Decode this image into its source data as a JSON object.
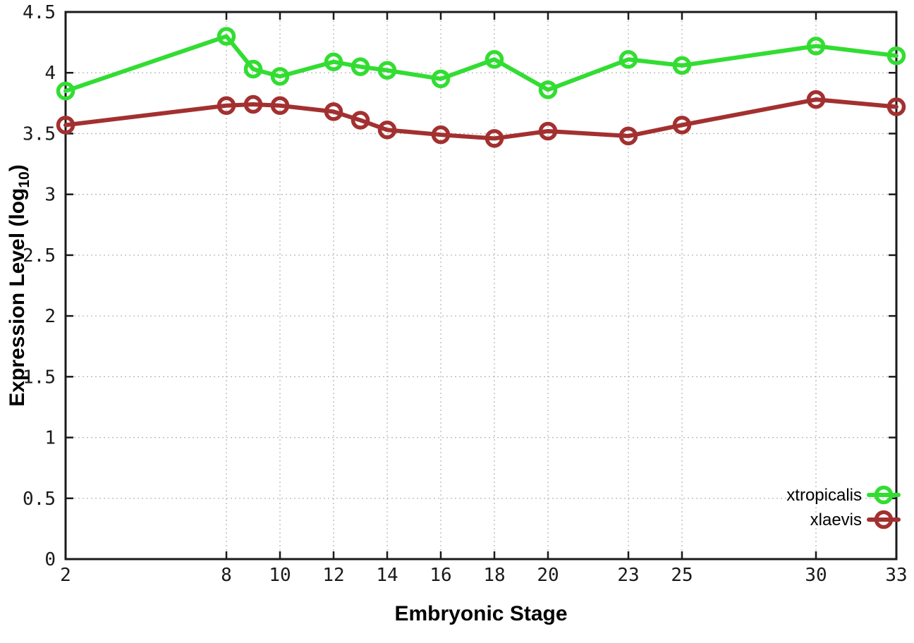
{
  "chart_data": {
    "type": "line",
    "title": "",
    "xlabel": "Embryonic Stage",
    "ylabel": "Expression Level (log10)",
    "ylabel_parts": {
      "main": "Expression Level (log",
      "sub": "10",
      "end": ")"
    },
    "x": [
      2,
      8,
      9,
      10,
      12,
      13,
      14,
      16,
      18,
      20,
      23,
      25,
      30,
      33
    ],
    "series": [
      {
        "name": "xtropicalis",
        "color": "#32dd32",
        "values": [
          3.85,
          4.3,
          4.03,
          3.97,
          4.09,
          4.05,
          4.02,
          3.95,
          4.11,
          3.86,
          4.11,
          4.06,
          4.22,
          4.14
        ]
      },
      {
        "name": "xlaevis",
        "color": "#a33030",
        "values": [
          3.57,
          3.73,
          3.74,
          3.73,
          3.68,
          3.61,
          3.53,
          3.49,
          3.46,
          3.52,
          3.48,
          3.57,
          3.78,
          3.72
        ]
      }
    ],
    "xticks": [
      2,
      8,
      10,
      12,
      14,
      16,
      18,
      20,
      23,
      25,
      30,
      33
    ],
    "yticks": [
      0,
      0.5,
      1,
      1.5,
      2,
      2.5,
      3,
      3.5,
      4,
      4.5
    ],
    "xlim": [
      2,
      33
    ],
    "ylim": [
      0,
      4.5
    ],
    "grid": true,
    "legend_position": "bottom-right",
    "legend_entries": [
      "xtropicalis",
      "xlaevis"
    ]
  },
  "colors": {
    "background": "#ffffff",
    "border": "#1a1a1a",
    "grid": "#b8b8b8",
    "text": "#000000",
    "series_green": "#32dd32",
    "series_dark_red": "#a33030"
  }
}
